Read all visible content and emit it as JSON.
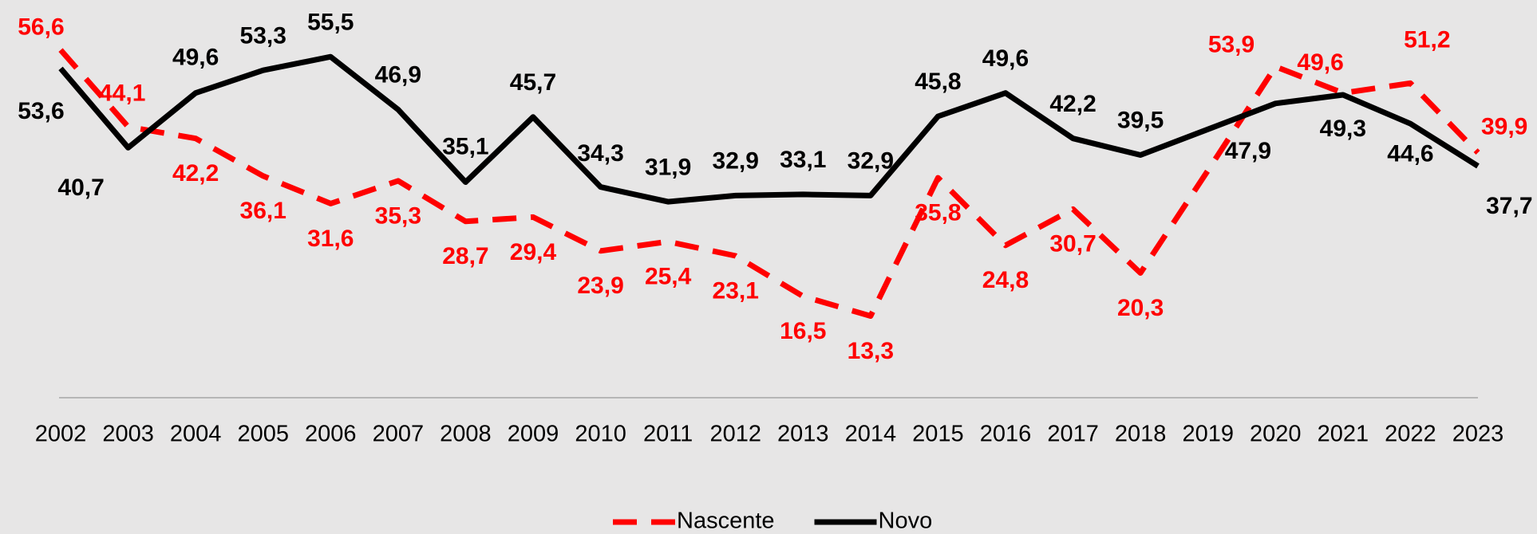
{
  "chart_data": {
    "type": "line",
    "categories": [
      "2002",
      "2003",
      "2004",
      "2005",
      "2006",
      "2007",
      "2008",
      "2009",
      "2010",
      "2011",
      "2012",
      "2013",
      "2014",
      "2015",
      "2016",
      "2017",
      "2018",
      "2019",
      "2020",
      "2021",
      "2022",
      "2023"
    ],
    "series": [
      {
        "name": "Nascente",
        "color": "#ff0000",
        "dash": "dashed",
        "values": [
          56.6,
          44.1,
          42.2,
          36.1,
          31.6,
          35.3,
          28.7,
          29.4,
          23.9,
          25.4,
          23.1,
          16.5,
          13.3,
          35.8,
          24.8,
          30.7,
          20.3,
          37,
          53.9,
          49.6,
          51.2,
          39.9
        ],
        "value_labels": [
          "56,6",
          "44,1",
          "42,2",
          "36,1",
          "31,6",
          "35,3",
          "28,7",
          "29,4",
          "23,9",
          "25,4",
          "23,1",
          "16,5",
          "13,3",
          "35,8",
          "24,8",
          "30,7",
          "20,3",
          null,
          "53,9",
          "49,6",
          "51,2",
          "39,9"
        ]
      },
      {
        "name": "Novo",
        "color": "#000000",
        "dash": "solid",
        "values": [
          53.6,
          40.7,
          49.6,
          53.3,
          55.5,
          46.9,
          35.1,
          45.7,
          34.3,
          31.9,
          32.9,
          33.1,
          32.9,
          45.8,
          49.6,
          42.2,
          39.5,
          43.7,
          47.9,
          49.3,
          44.6,
          37.7
        ],
        "value_labels": [
          "53,6",
          "40,7",
          "49,6",
          "53,3",
          "55,5",
          "46,9",
          "35,1",
          "45,7",
          "34,3",
          "31,9",
          "32,9",
          "33,1",
          "32,9",
          "45,8",
          "49,6",
          "42,2",
          "39,5",
          null,
          "47,9",
          "49,3",
          "44,6",
          "37,7"
        ]
      }
    ],
    "ylim": [
      0,
      65
    ],
    "legend": "bottom"
  }
}
